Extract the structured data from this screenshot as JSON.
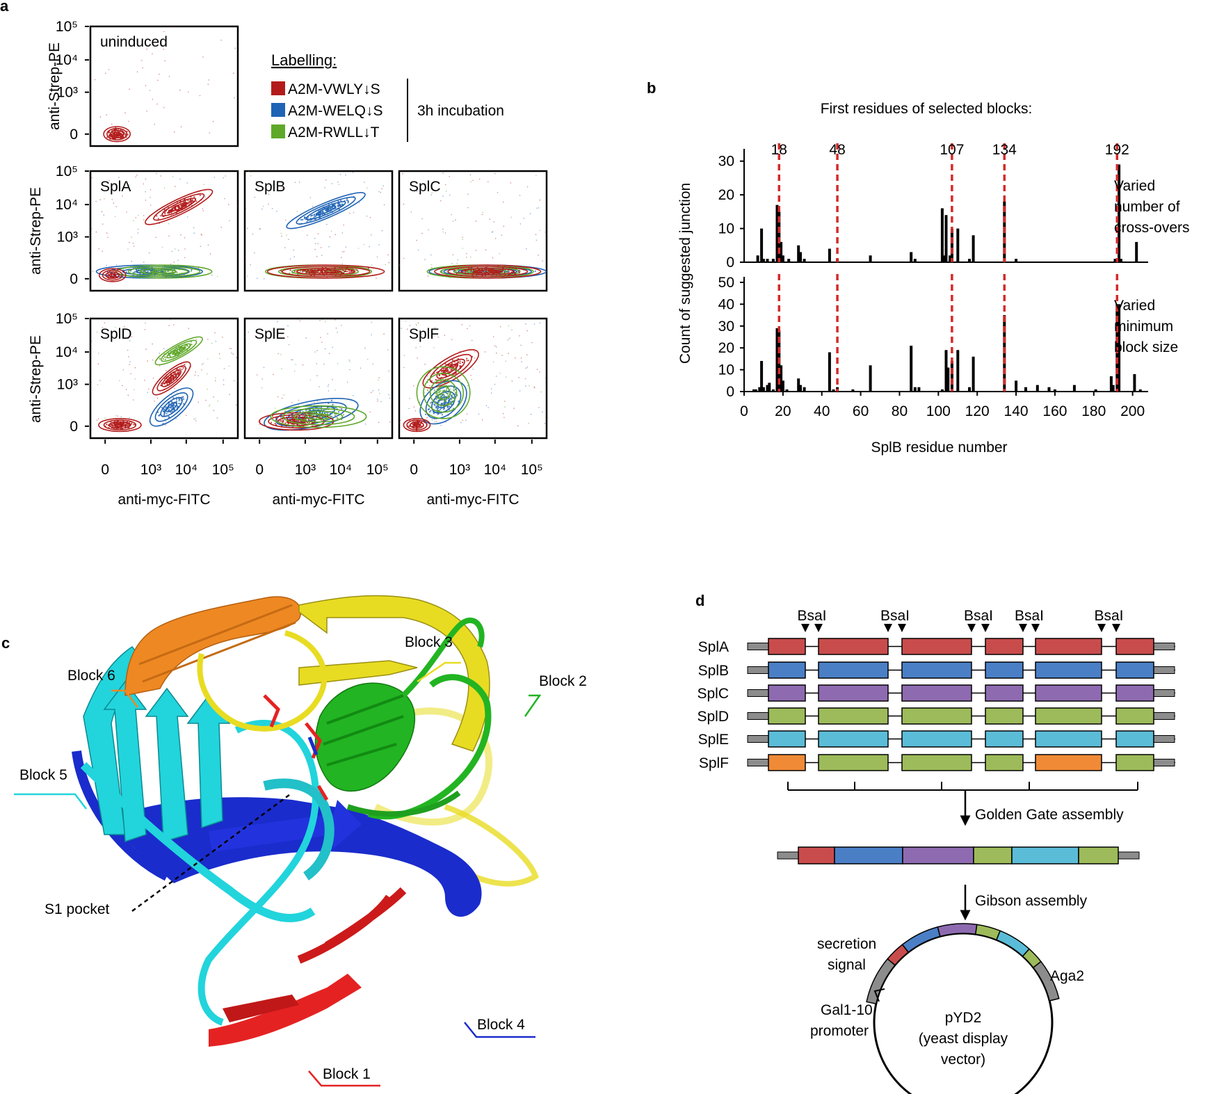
{
  "panel_letters": {
    "a": "a",
    "b": "b",
    "c": "c",
    "d": "d"
  },
  "colors": {
    "red": "#b31b1b",
    "blue": "#1e63b4",
    "green": "#5fa829",
    "junction": "#d42a2a",
    "splA": "#c94c4c",
    "splB": "#4a7fc6",
    "splC": "#8e6bb0",
    "splD": "#9dbb5a",
    "splE": "#5bbcd8",
    "splF": "#f08a36",
    "block1": "#e52222",
    "block2": "#22b422",
    "block3": "#e8dc22",
    "block4": "#1a2ccc",
    "block5": "#22d4dc",
    "block6": "#ee8822"
  },
  "panel_a": {
    "ylabel": "anti-Strep-PE",
    "xlabel": "anti-myc-FITC",
    "y_ticks": [
      "10⁵",
      "10⁴",
      "10³",
      "0"
    ],
    "x_ticks": [
      "0",
      "10³",
      "10⁴",
      "10⁵"
    ],
    "legend": {
      "title": "Labelling:",
      "items": [
        "A2M-VWLY↓S",
        "A2M-WELQ↓S",
        "A2M-RWLL↓T"
      ],
      "incubation": "3h incubation"
    },
    "plots": [
      "uninduced",
      "SplA",
      "SplB",
      "SplC",
      "SplD",
      "SplE",
      "SplF"
    ]
  },
  "panel_b": {
    "subtitle": "First residues of selected blocks:",
    "ylabel": "Count of suggested junction",
    "xlabel": "SplB residue number",
    "top_label": [
      "Varied",
      "number of",
      "cross-overs"
    ],
    "bottom_label": [
      "Varied",
      "minimum",
      "block size"
    ]
  },
  "chart_data": [
    {
      "type": "bar",
      "title": "Varied number of cross-overs",
      "xlabel": "SplB residue number",
      "ylabel": "Count of suggested junction",
      "xlim": [
        0,
        208
      ],
      "ylim": [
        0,
        32
      ],
      "yticks": [
        0,
        10,
        20,
        30
      ],
      "junction_lines": [
        18,
        48,
        107,
        134,
        192
      ],
      "x": [
        7,
        9,
        10,
        12,
        15,
        17,
        18,
        19,
        20,
        23,
        28,
        29,
        31,
        44,
        48,
        65,
        86,
        88,
        102,
        103,
        104,
        106,
        107,
        110,
        116,
        118,
        134,
        140,
        191,
        193,
        194,
        202
      ],
      "values": [
        2,
        10,
        1,
        1,
        1,
        17,
        15,
        6,
        2,
        1,
        5,
        3,
        1,
        4,
        1,
        2,
        3,
        1,
        16,
        2,
        14,
        2,
        10,
        10,
        1,
        8,
        18,
        1,
        1,
        29,
        1,
        6
      ]
    },
    {
      "type": "bar",
      "title": "Varied minimum block size",
      "xlabel": "SplB residue number",
      "ylabel": "Count of suggested junction",
      "xlim": [
        0,
        208
      ],
      "ylim": [
        0,
        50
      ],
      "yticks": [
        0,
        10,
        20,
        30,
        40,
        50
      ],
      "xticks": [
        0,
        20,
        40,
        60,
        80,
        100,
        120,
        140,
        160,
        180,
        200
      ],
      "junction_lines": [
        18,
        48,
        107,
        134,
        192
      ],
      "x": [
        5,
        6,
        8,
        9,
        10,
        12,
        13,
        15,
        17,
        18,
        19,
        20,
        22,
        28,
        29,
        31,
        44,
        46,
        48,
        56,
        65,
        86,
        88,
        90,
        102,
        104,
        105,
        107,
        110,
        116,
        118,
        134,
        140,
        145,
        151,
        157,
        160,
        170,
        181,
        189,
        190,
        192,
        193,
        201,
        204
      ],
      "values": [
        1,
        1,
        2,
        14,
        2,
        3,
        4,
        1,
        29,
        28,
        12,
        5,
        1,
        6,
        3,
        2,
        18,
        1,
        2,
        1,
        12,
        21,
        2,
        2,
        1,
        19,
        11,
        14,
        19,
        2,
        16,
        35,
        5,
        2,
        3,
        2,
        1,
        3,
        1,
        7,
        3,
        40,
        40,
        8,
        1
      ]
    }
  ],
  "panel_c": {
    "labels": [
      "Block 3",
      "Block 6",
      "Block 2",
      "Block 5",
      "S1 pocket",
      "Block 4",
      "Block 1"
    ]
  },
  "panel_d": {
    "site": "BsaI",
    "rows": [
      "SplA",
      "SplB",
      "SplC",
      "SplD",
      "SplE",
      "SplF"
    ],
    "golden_gate": "Golden Gate assembly",
    "gibson": "Gibson assembly",
    "secretion": [
      "secretion",
      "signal"
    ],
    "aga2": "Aga2",
    "promoter": [
      "Gal1-10",
      "promoter"
    ],
    "vector": [
      "pYD2",
      "(yeast display",
      "vector)"
    ]
  }
}
